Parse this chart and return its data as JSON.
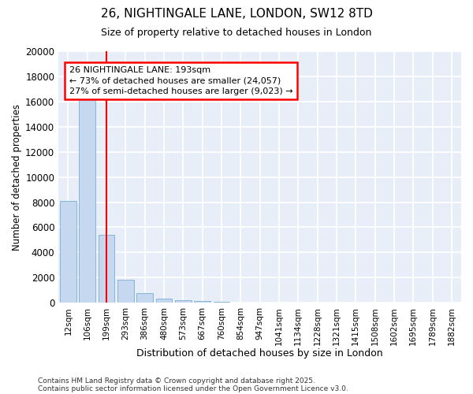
{
  "title1": "26, NIGHTINGALE LANE, LONDON, SW12 8TD",
  "title2": "Size of property relative to detached houses in London",
  "xlabel": "Distribution of detached houses by size in London",
  "ylabel": "Number of detached properties",
  "bar_categories": [
    "12sqm",
    "106sqm",
    "199sqm",
    "293sqm",
    "386sqm",
    "480sqm",
    "573sqm",
    "667sqm",
    "760sqm",
    "854sqm",
    "947sqm",
    "1041sqm",
    "1134sqm",
    "1228sqm",
    "1321sqm",
    "1415sqm",
    "1508sqm",
    "1602sqm",
    "1695sqm",
    "1789sqm",
    "1882sqm"
  ],
  "bar_values": [
    8100,
    16700,
    5400,
    1800,
    750,
    350,
    200,
    130,
    50,
    0,
    0,
    0,
    0,
    0,
    0,
    0,
    0,
    0,
    0,
    0,
    0
  ],
  "bar_color": "#c5d8f0",
  "bar_edge_color": "#7aadd4",
  "red_line_index": 2,
  "ylim": [
    0,
    20000
  ],
  "annotation_text": "26 NIGHTINGALE LANE: 193sqm\n← 73% of detached houses are smaller (24,057)\n27% of semi-detached houses are larger (9,023) →",
  "annotation_box_color": "white",
  "annotation_box_edge_color": "red",
  "footer1": "Contains HM Land Registry data © Crown copyright and database right 2025.",
  "footer2": "Contains public sector information licensed under the Open Government Licence v3.0.",
  "bg_color": "#ffffff",
  "plot_bg_color": "#e8eef8",
  "grid_color": "#ffffff",
  "yticks": [
    0,
    2000,
    4000,
    6000,
    8000,
    10000,
    12000,
    14000,
    16000,
    18000,
    20000
  ],
  "title1_fontsize": 11,
  "title2_fontsize": 9
}
